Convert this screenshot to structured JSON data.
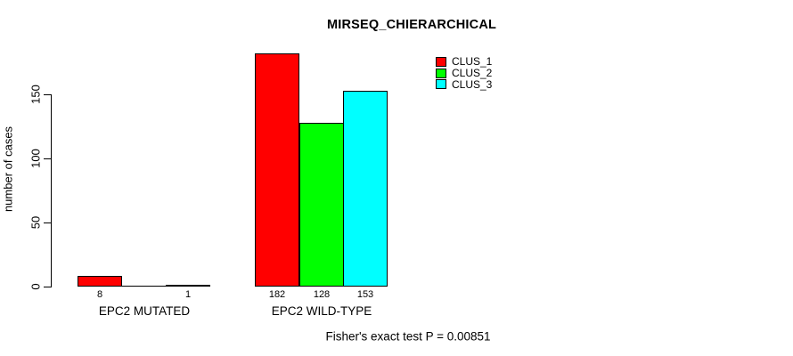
{
  "title": "MIRSEQ_CHIERARCHICAL",
  "footer_annotation": "Fisher's exact test P = 0.00851",
  "colors": {
    "background": "#ffffff",
    "axis": "#000000",
    "text": "#000000"
  },
  "chart_data": {
    "type": "bar",
    "title": "MIRSEQ_CHIERARCHICAL",
    "xlabel": "",
    "ylabel": "number of cases",
    "categories": [
      "EPC2 MUTATED",
      "EPC2 WILD-TYPE"
    ],
    "series": [
      {
        "name": "CLUS_1",
        "color": "#ff0000",
        "values": [
          8,
          182
        ]
      },
      {
        "name": "CLUS_2",
        "color": "#00ff00",
        "values": [
          0,
          128
        ]
      },
      {
        "name": "CLUS_3",
        "color": "#00ffff",
        "values": [
          1,
          153
        ]
      }
    ],
    "bar_value_labels": [
      [
        "8",
        "",
        "1"
      ],
      [
        "182",
        "128",
        "153"
      ]
    ],
    "yticks": [
      0,
      50,
      100,
      150
    ],
    "ylim": [
      0,
      150
    ],
    "grid": false,
    "legend_position": "top-right",
    "legend_items": [
      {
        "label": "CLUS_1",
        "color": "#ff0000"
      },
      {
        "label": "CLUS_2",
        "color": "#00ff00"
      },
      {
        "label": "CLUS_3",
        "color": "#00ffff"
      }
    ],
    "annotation": "Fisher's exact test P = 0.00851"
  }
}
